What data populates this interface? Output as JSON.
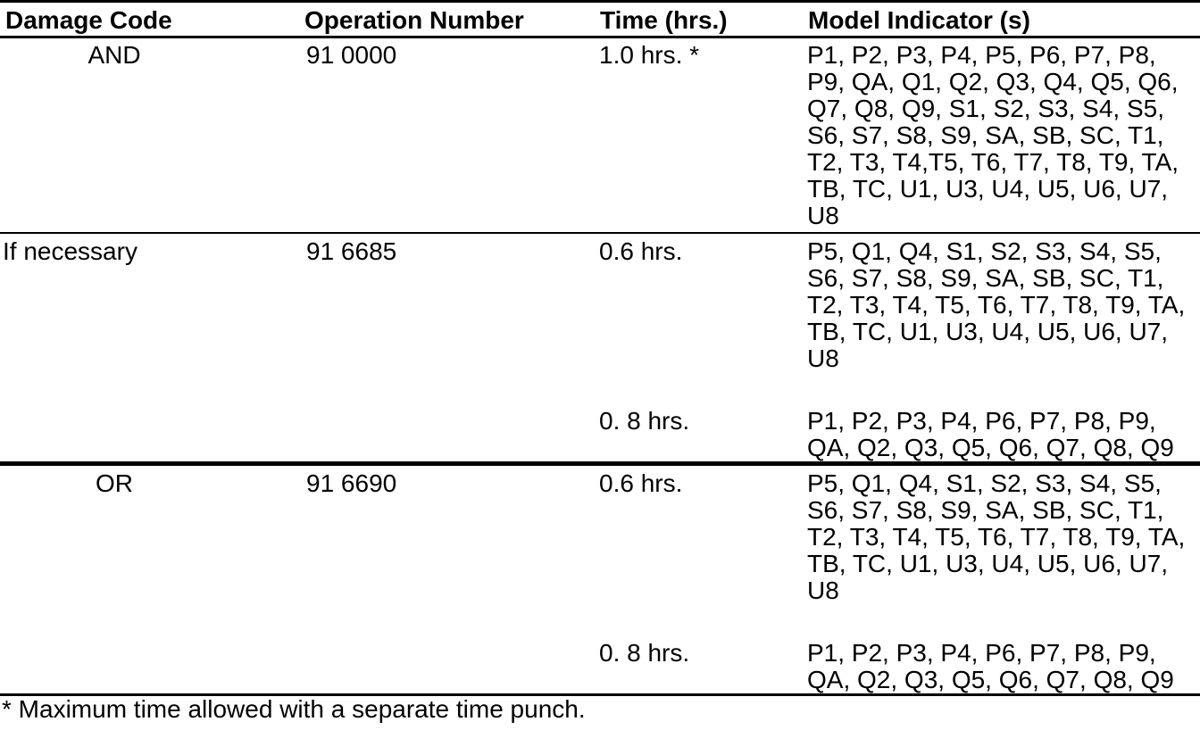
{
  "table": {
    "headers": [
      "Damage Code",
      "Operation Number",
      "Time (hrs.)",
      "Model Indicator (s)"
    ],
    "rows": [
      {
        "damage_code": "AND",
        "operation_number": "91 0000",
        "entries": [
          {
            "time": "1.0 hrs. *",
            "model_lines": [
              "P1, P2, P3, P4, P5, P6, P7, P8,",
              "P9, QA, Q1, Q2, Q3, Q4, Q5, Q6,",
              "Q7, Q8, Q9, S1, S2, S3, S4, S5,",
              "S6, S7, S8, S9, SA, SB, SC, T1,",
              "T2, T3, T4,T5, T6, T7, T8, T9, TA,",
              "TB, TC, U1, U3, U4, U5, U6, U7,",
              "U8"
            ]
          }
        ]
      },
      {
        "damage_code": "If necessary",
        "operation_number": "91 6685",
        "entries": [
          {
            "time": "0.6 hrs.",
            "model_lines": [
              "P5, Q1, Q4, S1, S2, S3, S4, S5,",
              "S6, S7, S8, S9, SA, SB, SC, T1,",
              "T2, T3, T4, T5, T6, T7, T8, T9, TA,",
              "TB, TC, U1, U3, U4, U5, U6, U7,",
              "U8"
            ]
          },
          {
            "time": "0. 8 hrs.",
            "model_lines": [
              "P1, P2, P3, P4, P6, P7, P8, P9,",
              "QA, Q2, Q3, Q5, Q6, Q7, Q8, Q9"
            ]
          }
        ]
      },
      {
        "damage_code": "OR",
        "operation_number": "91 6690",
        "entries": [
          {
            "time": "0.6 hrs.",
            "model_lines": [
              "P5, Q1, Q4, S1, S2, S3, S4, S5,",
              "S6, S7, S8, S9, SA, SB, SC, T1,",
              "T2, T3, T4, T5, T6, T7, T8, T9, TA,",
              "TB, TC, U1, U3, U4, U5, U6, U7,",
              "U8"
            ]
          },
          {
            "time": "0. 8 hrs.",
            "model_lines": [
              "P1, P2, P3, P4, P6, P7, P8, P9,",
              "QA, Q2, Q3, Q5, Q6, Q7, Q8, Q9"
            ]
          }
        ]
      }
    ],
    "footnote": "* Maximum time allowed with a separate time punch."
  }
}
